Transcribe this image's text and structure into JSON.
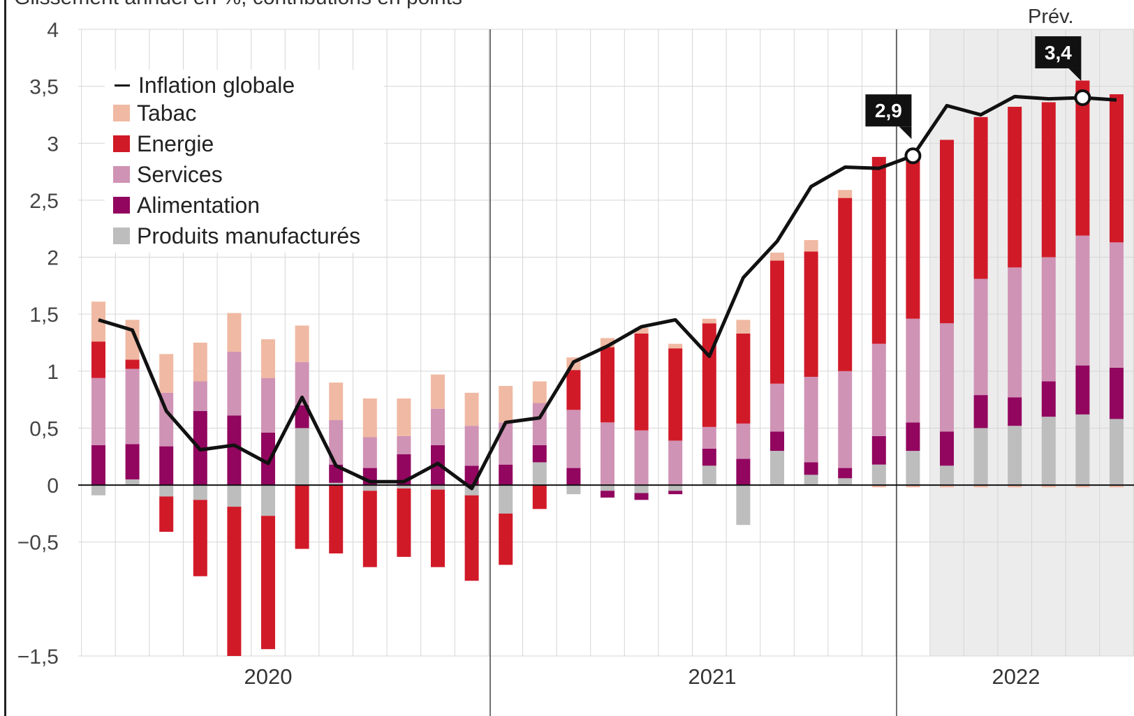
{
  "subtitle": "Glissement annuel en %, contributions en points",
  "prev_label": "Prév.",
  "callouts": [
    {
      "label": "2,9",
      "index": 24
    },
    {
      "label": "3,4",
      "index": 29
    }
  ],
  "legend": {
    "items": [
      {
        "key": "line",
        "label": "Inflation globale",
        "color": "#111111"
      },
      {
        "key": "tabac",
        "label": "Tabac",
        "color": "#f0b9a3"
      },
      {
        "key": "energie",
        "label": "Energie",
        "color": "#d11a28"
      },
      {
        "key": "services",
        "label": "Services",
        "color": "#cf93b5"
      },
      {
        "key": "alimentation",
        "label": "Alimentation",
        "color": "#92065f"
      },
      {
        "key": "produits",
        "label": "Produits manufacturés",
        "color": "#bdbdbd"
      }
    ]
  },
  "chart_data": {
    "type": "bar",
    "stacked": true,
    "ylim": [
      -1.5,
      4
    ],
    "yticks": [
      {
        "v": 4,
        "label": "4"
      },
      {
        "v": 3.5,
        "label": "3,5"
      },
      {
        "v": 3,
        "label": "3"
      },
      {
        "v": 2.5,
        "label": "2,5"
      },
      {
        "v": 2,
        "label": "2"
      },
      {
        "v": 1.5,
        "label": "1,5"
      },
      {
        "v": 1,
        "label": "1"
      },
      {
        "v": 0.5,
        "label": "0,5"
      },
      {
        "v": 0,
        "label": "0"
      },
      {
        "v": -0.5,
        "label": "−0,5"
      },
      {
        "v": -1.5,
        "label": "−1,5"
      }
    ],
    "year_labels": [
      "2020",
      "2021",
      "2022"
    ],
    "forecast_start_index": 25,
    "series": [
      {
        "name": "Produits manufacturés",
        "key": "produits",
        "color": "#bdbdbd",
        "values": [
          -0.09,
          0.05,
          -0.1,
          -0.13,
          -0.19,
          -0.27,
          0.5,
          0.02,
          -0.05,
          -0.03,
          -0.04,
          -0.09,
          -0.25,
          0.2,
          -0.08,
          -0.05,
          -0.07,
          -0.05,
          0.17,
          -0.35,
          0.3,
          0.09,
          0.06,
          0.18,
          0.3,
          0.17,
          0.5,
          0.52,
          0.6,
          0.62,
          0.58
        ]
      },
      {
        "name": "Alimentation",
        "key": "alimentation",
        "color": "#92065f",
        "values": [
          0.35,
          0.31,
          0.34,
          0.65,
          0.61,
          0.46,
          0.2,
          0.16,
          0.15,
          0.27,
          0.35,
          0.17,
          0.18,
          0.15,
          0.15,
          -0.06,
          -0.06,
          -0.03,
          0.15,
          0.23,
          0.17,
          0.11,
          0.09,
          0.25,
          0.25,
          0.3,
          0.29,
          0.25,
          0.31,
          0.43,
          0.45
        ]
      },
      {
        "name": "Services",
        "key": "services",
        "color": "#cf93b5",
        "values": [
          0.59,
          0.66,
          0.47,
          0.26,
          0.56,
          0.48,
          0.38,
          0.39,
          0.27,
          0.16,
          0.32,
          0.35,
          0.37,
          0.37,
          0.51,
          0.55,
          0.48,
          0.39,
          0.19,
          0.31,
          0.42,
          0.75,
          0.85,
          0.81,
          0.91,
          0.95,
          1.02,
          1.14,
          1.09,
          1.14,
          1.1
        ]
      },
      {
        "name": "Energie",
        "key": "energie",
        "color": "#d11a28",
        "values": [
          0.32,
          0.08,
          -0.31,
          -0.67,
          -1.31,
          -1.17,
          -0.56,
          -0.6,
          -0.67,
          -0.6,
          -0.68,
          -0.75,
          -0.45,
          -0.21,
          0.35,
          0.66,
          0.85,
          0.81,
          0.91,
          0.79,
          1.08,
          1.1,
          1.52,
          1.64,
          1.4,
          1.61,
          1.42,
          1.41,
          1.36,
          1.36,
          1.3
        ]
      },
      {
        "name": "Tabac",
        "key": "tabac",
        "color": "#f0b9a3",
        "values": [
          0.35,
          0.35,
          0.34,
          0.34,
          0.34,
          0.34,
          0.32,
          0.33,
          0.34,
          0.33,
          0.3,
          0.29,
          0.32,
          0.19,
          0.11,
          0.08,
          0.05,
          0.04,
          0.04,
          0.12,
          0.07,
          0.1,
          0.07,
          -0.02,
          -0.02,
          -0.02,
          -0.02,
          -0.02,
          -0.02,
          -0.02,
          -0.02
        ]
      },
      {
        "name": "Inflation globale",
        "key": "line",
        "type": "line",
        "color": "#111111",
        "values": [
          1.45,
          1.36,
          0.65,
          0.31,
          0.35,
          0.19,
          0.77,
          0.17,
          0.03,
          0.03,
          0.19,
          -0.03,
          0.55,
          0.59,
          1.08,
          1.22,
          1.39,
          1.45,
          1.13,
          1.82,
          2.14,
          2.62,
          2.79,
          2.78,
          2.89,
          3.33,
          3.25,
          3.41,
          3.39,
          3.4,
          3.38
        ]
      }
    ]
  }
}
